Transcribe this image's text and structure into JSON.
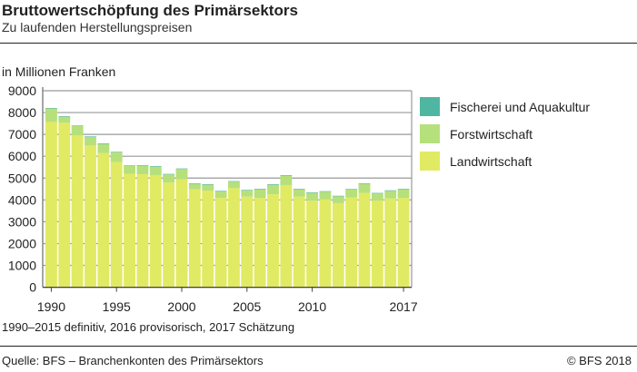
{
  "title": "Bruttowertschöpfung des Primärsektors",
  "subtitle": "Zu laufenden Herstellungspreisen",
  "note": "1990–2015 definitiv, 2016 provisorisch, 2017 Schätzung",
  "source": "Quelle: BFS – Branchenkonten des Primärsektors",
  "copyright": "© BFS  2018",
  "chart_data": {
    "type": "bar",
    "stacked": true,
    "ylabel": "in Millionen Franken",
    "ylim": [
      0,
      9000
    ],
    "yticks": [
      0,
      1000,
      2000,
      3000,
      4000,
      5000,
      6000,
      7000,
      8000,
      9000
    ],
    "grid": true,
    "legend_position": "right",
    "categories": [
      1990,
      1991,
      1992,
      1993,
      1994,
      1995,
      1996,
      1997,
      1998,
      1999,
      2000,
      2001,
      2002,
      2003,
      2004,
      2005,
      2006,
      2007,
      2008,
      2009,
      2010,
      2011,
      2012,
      2013,
      2014,
      2015,
      2016,
      2017
    ],
    "xtick_labels": [
      "1990",
      "1995",
      "2000",
      "2005",
      "2010",
      "2017"
    ],
    "series": [
      {
        "name": "Landwirtschaft",
        "color": "#e1ea63",
        "values": [
          7570,
          7530,
          6950,
          6490,
          6145,
          5730,
          5190,
          5175,
          5135,
          4800,
          4940,
          4480,
          4415,
          4095,
          4540,
          4150,
          4095,
          4260,
          4680,
          4150,
          3960,
          4030,
          3850,
          4110,
          4320,
          3960,
          4070,
          4095
        ]
      },
      {
        "name": "Forstwirtschaft",
        "color": "#b6e07b",
        "values": [
          615,
          280,
          430,
          395,
          420,
          445,
          365,
          390,
          390,
          365,
          475,
          255,
          280,
          295,
          295,
          285,
          390,
          435,
          430,
          335,
          360,
          345,
          315,
          365,
          415,
          335,
          345,
          390
        ]
      },
      {
        "name": "Fischerei und Aquakultur",
        "color": "#4fb6a1",
        "values": [
          25,
          25,
          25,
          25,
          25,
          25,
          25,
          25,
          25,
          25,
          25,
          25,
          25,
          25,
          25,
          25,
          25,
          25,
          25,
          25,
          25,
          25,
          25,
          25,
          25,
          25,
          25,
          25
        ]
      }
    ]
  }
}
